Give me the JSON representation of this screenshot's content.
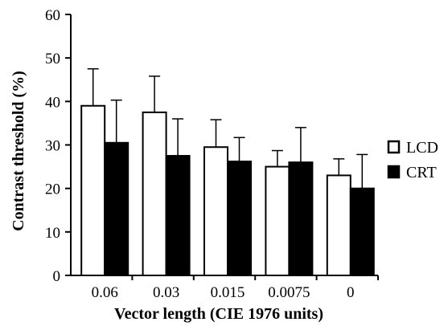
{
  "chart_data": {
    "type": "bar",
    "categories": [
      "0.06",
      "0.03",
      "0.015",
      "0.0075",
      "0"
    ],
    "series": [
      {
        "name": "LCD",
        "values": [
          39,
          37.5,
          29.5,
          25,
          23
        ],
        "error": [
          8.5,
          8.3,
          6.3,
          3.7,
          3.8
        ],
        "fill": "#ffffff",
        "stroke": "#000000"
      },
      {
        "name": "CRT",
        "values": [
          30.5,
          27.5,
          26.2,
          26,
          20
        ],
        "error": [
          9.8,
          8.5,
          5.5,
          8.0,
          7.8
        ],
        "fill": "#000000",
        "stroke": "#000000"
      }
    ],
    "xlabel": "Vector length (CIE 1976 units)",
    "ylabel": "Contrast threshold (%)",
    "ylim": [
      0,
      60
    ],
    "yticks": [
      "0",
      "10",
      "20",
      "30",
      "40",
      "50",
      "60"
    ],
    "grid": false,
    "legend_position": "right"
  }
}
